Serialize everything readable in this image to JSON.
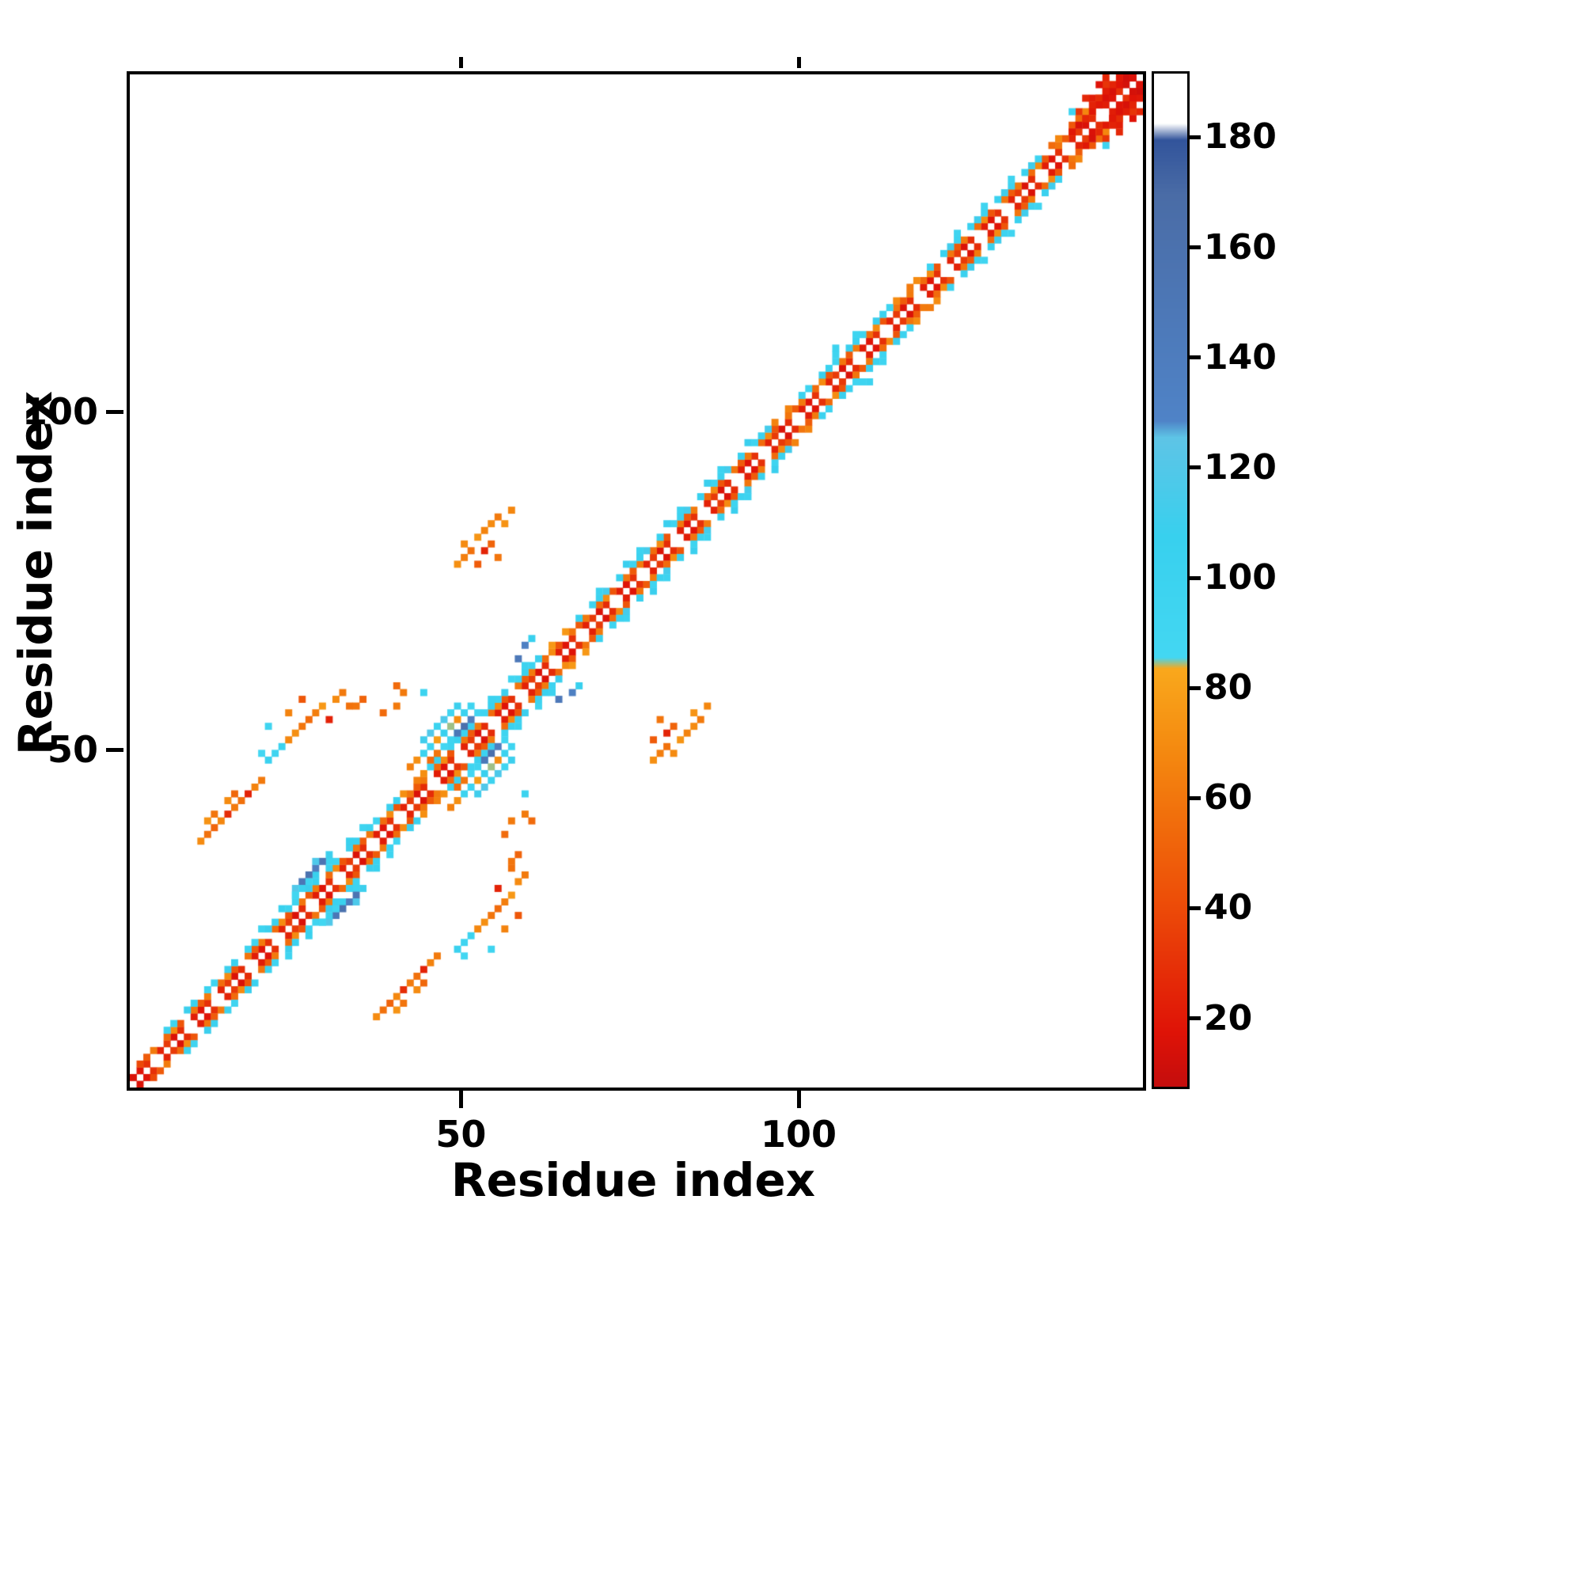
{
  "figure": {
    "background": "#ffffff"
  },
  "chart_data": {
    "type": "heatmap",
    "title": "",
    "xlabel": "Residue index",
    "ylabel": "Residue index",
    "n_residues": 150,
    "xlim": [
      1,
      150
    ],
    "ylim": [
      1,
      150
    ],
    "x_ticks": [
      50,
      100
    ],
    "y_ticks": [
      50,
      100
    ],
    "grid": false,
    "legend_position": "right-colorbar",
    "colorbar": {
      "ticks": [
        20,
        40,
        60,
        80,
        100,
        120,
        140,
        160,
        180
      ],
      "vmin": 8,
      "vmax": 192,
      "stops": [
        [
          8,
          "#c40d0d"
        ],
        [
          18,
          "#df1307"
        ],
        [
          42,
          "#ed4e08"
        ],
        [
          68,
          "#f4870f"
        ],
        [
          84,
          "#f9a81c"
        ],
        [
          86,
          "#43d7f2"
        ],
        [
          108,
          "#38d0ee"
        ],
        [
          126,
          "#5ec4e6"
        ],
        [
          129,
          "#4f83c7"
        ],
        [
          170,
          "#4a6ca6"
        ],
        [
          180,
          "#32549b"
        ],
        [
          183,
          "#ffffff"
        ],
        [
          192,
          "#ffffff"
        ]
      ]
    },
    "symmetric": true,
    "bands": [
      {
        "i0": 2,
        "i1": 149,
        "off": 1,
        "vals": [
          18,
          30,
          0,
          24,
          34,
          16,
          28,
          0,
          22
        ]
      },
      {
        "i0": 3,
        "i1": 148,
        "off": 2,
        "vals": [
          48,
          62,
          0,
          55,
          70,
          45,
          0,
          60
        ]
      },
      {
        "i0": 6,
        "i1": 40,
        "off": 3,
        "vals": [
          100,
          95,
          0,
          110,
          104,
          0
        ]
      },
      {
        "i0": 41,
        "i1": 44,
        "off": 3,
        "vals": [
          72,
          0,
          65
        ]
      },
      {
        "i0": 45,
        "i1": 62,
        "off": 3,
        "vals": [
          98,
          110,
          0,
          96,
          105
        ]
      },
      {
        "i0": 63,
        "i1": 66,
        "off": 3,
        "vals": [
          76,
          0
        ]
      },
      {
        "i0": 67,
        "i1": 95,
        "off": 3,
        "vals": [
          106,
          0,
          96,
          102,
          114,
          0
        ]
      },
      {
        "i0": 96,
        "i1": 99,
        "off": 3,
        "vals": [
          66,
          0
        ]
      },
      {
        "i0": 100,
        "i1": 113,
        "off": 3,
        "vals": [
          103,
          97,
          0,
          109
        ]
      },
      {
        "i0": 114,
        "i1": 118,
        "off": 3,
        "vals": [
          70,
          0,
          62
        ]
      },
      {
        "i0": 119,
        "i1": 136,
        "off": 3,
        "vals": [
          99,
          0,
          105,
          112
        ]
      },
      {
        "i0": 137,
        "i1": 147,
        "off": 3,
        "vals": [
          55,
          68,
          0,
          46
        ]
      },
      {
        "i0": 20,
        "i1": 36,
        "off": 4,
        "vals": [
          96,
          0,
          0,
          106,
          0
        ]
      },
      {
        "i0": 48,
        "i1": 60,
        "off": 4,
        "vals": [
          0,
          101,
          0,
          0,
          93
        ]
      },
      {
        "i0": 70,
        "i1": 92,
        "off": 4,
        "vals": [
          99,
          0,
          0,
          0,
          109,
          0
        ]
      },
      {
        "i0": 104,
        "i1": 110,
        "off": 4,
        "vals": [
          0,
          97,
          0
        ]
      },
      {
        "i0": 122,
        "i1": 132,
        "off": 4,
        "vals": [
          0,
          95,
          0,
          0
        ]
      },
      {
        "i0": 140,
        "i1": 148,
        "off": 2,
        "vals": [
          20,
          15,
          26
        ]
      },
      {
        "i0": 141,
        "i1": 147,
        "off": 4,
        "vals": [
          32,
          0,
          22,
          0
        ]
      },
      {
        "i0": 142,
        "i1": 146,
        "off": 5,
        "vals": [
          26,
          0,
          18
        ]
      }
    ],
    "points": [
      [
        44,
        50,
        100
      ],
      [
        45,
        51,
        95
      ],
      [
        46,
        52,
        78
      ],
      [
        47,
        53,
        108
      ],
      [
        48,
        54,
        85
      ],
      [
        44,
        52,
        112
      ],
      [
        45,
        53,
        120
      ],
      [
        46,
        54,
        100
      ],
      [
        47,
        55,
        118
      ],
      [
        48,
        56,
        92
      ],
      [
        49,
        55,
        70
      ],
      [
        50,
        56,
        102
      ],
      [
        51,
        57,
        96
      ],
      [
        43,
        49,
        72
      ],
      [
        42,
        48,
        65
      ],
      [
        49,
        57,
        110
      ],
      [
        46,
        50,
        60
      ],
      [
        45,
        49,
        55
      ],
      [
        47,
        51,
        88
      ],
      [
        48,
        52,
        95
      ],
      [
        50,
        54,
        162
      ],
      [
        49,
        53,
        150
      ],
      [
        51,
        55,
        140
      ],
      [
        58,
        64,
        148
      ],
      [
        59,
        66,
        135
      ],
      [
        60,
        67,
        108
      ],
      [
        26,
        31,
        150
      ],
      [
        27,
        32,
        160
      ],
      [
        28,
        33,
        140
      ],
      [
        29,
        34,
        155
      ],
      [
        25,
        30,
        120
      ],
      [
        30,
        35,
        110
      ],
      [
        26,
        30,
        100
      ],
      [
        27,
        31,
        95
      ],
      [
        28,
        34,
        118
      ],
      [
        25,
        29,
        90
      ],
      [
        49,
        78,
        72
      ],
      [
        50,
        79,
        64
      ],
      [
        50,
        81,
        70
      ],
      [
        51,
        80,
        58
      ],
      [
        52,
        82,
        75
      ],
      [
        53,
        83,
        66
      ],
      [
        54,
        81,
        52
      ],
      [
        54,
        84,
        70
      ],
      [
        55,
        85,
        62
      ],
      [
        56,
        84,
        74
      ],
      [
        52,
        78,
        48
      ],
      [
        57,
        86,
        68
      ],
      [
        53,
        80,
        25
      ],
      [
        55,
        79,
        60
      ],
      [
        20,
        50,
        88
      ],
      [
        21,
        49,
        104
      ],
      [
        22,
        50,
        95
      ],
      [
        23,
        51,
        100
      ],
      [
        21,
        54,
        95
      ],
      [
        24,
        52,
        68
      ],
      [
        25,
        53,
        72
      ],
      [
        26,
        54,
        60
      ],
      [
        27,
        55,
        55
      ],
      [
        28,
        56,
        64
      ],
      [
        29,
        57,
        76
      ],
      [
        30,
        55,
        24
      ],
      [
        31,
        58,
        70
      ],
      [
        32,
        59,
        62
      ],
      [
        33,
        57,
        58
      ],
      [
        26,
        58,
        46
      ],
      [
        24,
        56,
        66
      ],
      [
        11,
        37,
        70
      ],
      [
        12,
        38,
        58
      ],
      [
        13,
        39,
        52
      ],
      [
        14,
        40,
        68
      ],
      [
        15,
        41,
        28
      ],
      [
        16,
        42,
        62
      ],
      [
        17,
        43,
        58
      ],
      [
        18,
        44,
        24
      ],
      [
        19,
        45,
        66
      ],
      [
        12,
        40,
        74
      ],
      [
        16,
        44,
        54
      ],
      [
        20,
        46,
        62
      ],
      [
        13,
        41,
        60
      ],
      [
        15,
        43,
        70
      ],
      [
        41,
        59,
        62
      ],
      [
        40,
        60,
        55
      ],
      [
        44,
        59,
        100
      ],
      [
        40,
        57,
        62
      ],
      [
        38,
        56,
        55
      ],
      [
        34,
        57,
        60
      ],
      [
        35,
        58,
        52
      ],
      [
        146,
        148,
        15
      ],
      [
        147,
        149,
        18
      ],
      [
        148,
        150,
        12
      ],
      [
        145,
        148,
        22
      ],
      [
        146,
        149,
        25
      ],
      [
        147,
        150,
        20
      ],
      [
        144,
        147,
        28
      ],
      [
        145,
        147,
        16
      ],
      [
        148,
        149,
        14
      ],
      [
        149,
        150,
        16
      ],
      [
        144,
        146,
        20
      ],
      [
        143,
        146,
        24
      ],
      [
        1,
        2,
        16
      ],
      [
        2,
        4,
        40
      ],
      [
        140,
        145,
        95
      ],
      [
        105,
        110,
        100
      ]
    ]
  }
}
